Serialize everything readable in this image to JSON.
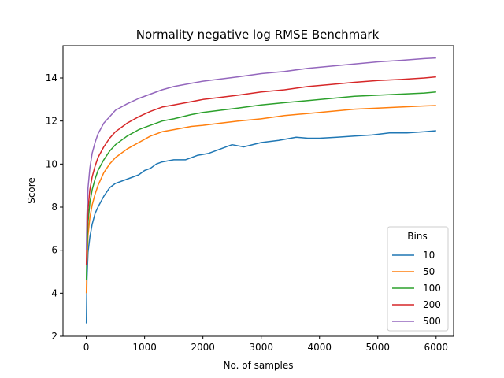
{
  "chart_data": {
    "type": "line",
    "title": "Normality negative log RMSE Benchmark",
    "xlabel": "No. of samples",
    "ylabel": "Score",
    "xlim": [
      -400,
      6300
    ],
    "ylim": [
      2,
      15.5
    ],
    "xticks": [
      0,
      1000,
      2000,
      3000,
      4000,
      5000,
      6000
    ],
    "yticks": [
      2,
      4,
      6,
      8,
      10,
      12,
      14
    ],
    "grid": false,
    "legend": {
      "title": "Bins",
      "placement": "bottom-right"
    },
    "series": [
      {
        "name": "10",
        "color": "#1f77b4",
        "points": [
          [
            1,
            2.6
          ],
          [
            10,
            4.6
          ],
          [
            30,
            5.9
          ],
          [
            60,
            6.6
          ],
          [
            100,
            7.2
          ],
          [
            150,
            7.7
          ],
          [
            200,
            8.0
          ],
          [
            300,
            8.5
          ],
          [
            400,
            8.9
          ],
          [
            500,
            9.1
          ],
          [
            700,
            9.3
          ],
          [
            900,
            9.5
          ],
          [
            1000,
            9.7
          ],
          [
            1100,
            9.8
          ],
          [
            1200,
            10.0
          ],
          [
            1300,
            10.1
          ],
          [
            1500,
            10.2
          ],
          [
            1700,
            10.2
          ],
          [
            1900,
            10.4
          ],
          [
            2100,
            10.5
          ],
          [
            2300,
            10.7
          ],
          [
            2500,
            10.9
          ],
          [
            2700,
            10.8
          ],
          [
            3000,
            11.0
          ],
          [
            3300,
            11.1
          ],
          [
            3600,
            11.25
          ],
          [
            3800,
            11.2
          ],
          [
            4000,
            11.2
          ],
          [
            4300,
            11.25
          ],
          [
            4600,
            11.3
          ],
          [
            4900,
            11.35
          ],
          [
            5200,
            11.45
          ],
          [
            5500,
            11.45
          ],
          [
            5800,
            11.5
          ],
          [
            6000,
            11.55
          ]
        ]
      },
      {
        "name": "50",
        "color": "#ff7f0e",
        "points": [
          [
            1,
            4.0
          ],
          [
            10,
            5.4
          ],
          [
            30,
            6.7
          ],
          [
            60,
            7.5
          ],
          [
            100,
            8.1
          ],
          [
            150,
            8.6
          ],
          [
            200,
            9.0
          ],
          [
            300,
            9.6
          ],
          [
            400,
            10.0
          ],
          [
            500,
            10.3
          ],
          [
            700,
            10.7
          ],
          [
            900,
            11.0
          ],
          [
            1100,
            11.3
          ],
          [
            1300,
            11.5
          ],
          [
            1500,
            11.6
          ],
          [
            1800,
            11.75
          ],
          [
            2000,
            11.8
          ],
          [
            2300,
            11.9
          ],
          [
            2600,
            12.0
          ],
          [
            3000,
            12.1
          ],
          [
            3400,
            12.25
          ],
          [
            3800,
            12.35
          ],
          [
            4200,
            12.45
          ],
          [
            4600,
            12.55
          ],
          [
            5000,
            12.6
          ],
          [
            5400,
            12.65
          ],
          [
            5800,
            12.7
          ],
          [
            6000,
            12.72
          ]
        ]
      },
      {
        "name": "100",
        "color": "#2ca02c",
        "points": [
          [
            1,
            4.6
          ],
          [
            10,
            6.0
          ],
          [
            30,
            7.3
          ],
          [
            60,
            8.2
          ],
          [
            100,
            8.8
          ],
          [
            150,
            9.3
          ],
          [
            200,
            9.7
          ],
          [
            300,
            10.2
          ],
          [
            400,
            10.6
          ],
          [
            500,
            10.9
          ],
          [
            700,
            11.3
          ],
          [
            900,
            11.6
          ],
          [
            1100,
            11.8
          ],
          [
            1300,
            12.0
          ],
          [
            1500,
            12.1
          ],
          [
            1800,
            12.3
          ],
          [
            2000,
            12.4
          ],
          [
            2300,
            12.5
          ],
          [
            2600,
            12.6
          ],
          [
            3000,
            12.75
          ],
          [
            3400,
            12.85
          ],
          [
            3800,
            12.95
          ],
          [
            4200,
            13.05
          ],
          [
            4600,
            13.15
          ],
          [
            5000,
            13.2
          ],
          [
            5400,
            13.25
          ],
          [
            5800,
            13.3
          ],
          [
            6000,
            13.35
          ]
        ]
      },
      {
        "name": "200",
        "color": "#d62728",
        "points": [
          [
            1,
            5.3
          ],
          [
            10,
            6.7
          ],
          [
            30,
            7.9
          ],
          [
            60,
            8.8
          ],
          [
            100,
            9.4
          ],
          [
            150,
            9.9
          ],
          [
            200,
            10.3
          ],
          [
            300,
            10.8
          ],
          [
            400,
            11.2
          ],
          [
            500,
            11.5
          ],
          [
            700,
            11.9
          ],
          [
            900,
            12.2
          ],
          [
            1100,
            12.45
          ],
          [
            1300,
            12.65
          ],
          [
            1500,
            12.75
          ],
          [
            1800,
            12.9
          ],
          [
            2000,
            13.0
          ],
          [
            2300,
            13.1
          ],
          [
            2600,
            13.2
          ],
          [
            3000,
            13.35
          ],
          [
            3400,
            13.45
          ],
          [
            3800,
            13.6
          ],
          [
            4200,
            13.7
          ],
          [
            4600,
            13.8
          ],
          [
            5000,
            13.88
          ],
          [
            5400,
            13.93
          ],
          [
            5800,
            14.0
          ],
          [
            6000,
            14.05
          ]
        ]
      },
      {
        "name": "500",
        "color": "#9467bd",
        "points": [
          [
            1,
            6.0
          ],
          [
            10,
            7.6
          ],
          [
            30,
            8.9
          ],
          [
            60,
            9.8
          ],
          [
            100,
            10.5
          ],
          [
            150,
            11.0
          ],
          [
            200,
            11.4
          ],
          [
            300,
            11.9
          ],
          [
            400,
            12.2
          ],
          [
            500,
            12.5
          ],
          [
            700,
            12.8
          ],
          [
            900,
            13.05
          ],
          [
            1100,
            13.25
          ],
          [
            1300,
            13.45
          ],
          [
            1500,
            13.6
          ],
          [
            1800,
            13.75
          ],
          [
            2000,
            13.85
          ],
          [
            2300,
            13.95
          ],
          [
            2600,
            14.05
          ],
          [
            3000,
            14.2
          ],
          [
            3400,
            14.3
          ],
          [
            3800,
            14.45
          ],
          [
            4200,
            14.55
          ],
          [
            4600,
            14.65
          ],
          [
            5000,
            14.75
          ],
          [
            5400,
            14.82
          ],
          [
            5800,
            14.9
          ],
          [
            6000,
            14.93
          ]
        ]
      }
    ]
  }
}
